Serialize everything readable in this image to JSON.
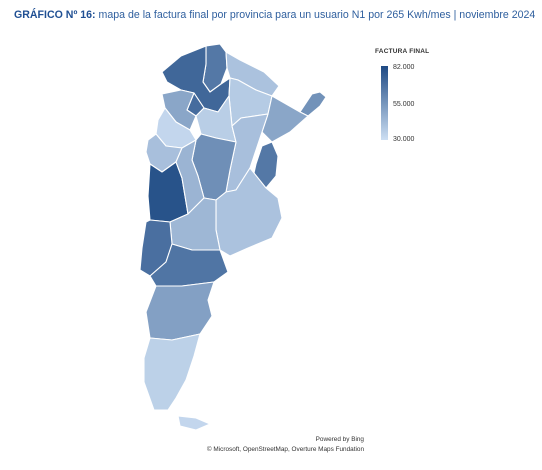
{
  "title": {
    "bold": "GRÁFICO Nº 16:",
    "text": " mapa de la factura final por provincia para un usuario N1 por 265 Kwh/mes | noviembre 2024"
  },
  "legend": {
    "title": "FACTURA FINAL",
    "max_label": "82.000",
    "mid_label": "55.000",
    "min_label": "30.000",
    "min_color": "#cddff3",
    "max_color": "#1e4a84"
  },
  "attribution": {
    "line1": "Powered by Bing",
    "line2": "© Microsoft, OpenStreetMap, Overture Maps Fundation"
  },
  "chart_data": {
    "type": "choropleth",
    "scale": {
      "min": 30000,
      "mid": 55000,
      "max": 82000
    },
    "regions": [
      {
        "id": "jujuy",
        "value": 66000
      },
      {
        "id": "salta",
        "value": 72000
      },
      {
        "id": "formosa",
        "value": 40000
      },
      {
        "id": "misiones",
        "value": 57000
      },
      {
        "id": "chaco",
        "value": 37000
      },
      {
        "id": "tucuman",
        "value": 70000
      },
      {
        "id": "catamarca",
        "value": 50000
      },
      {
        "id": "santiago-del-estero",
        "value": 36000
      },
      {
        "id": "corrientes",
        "value": 50000
      },
      {
        "id": "la-rioja",
        "value": 33000
      },
      {
        "id": "santa-fe",
        "value": 41000
      },
      {
        "id": "entre-rios",
        "value": 66000
      },
      {
        "id": "san-juan",
        "value": 41000
      },
      {
        "id": "cordoba",
        "value": 58000
      },
      {
        "id": "mendoza",
        "value": 79000
      },
      {
        "id": "san-luis",
        "value": 45000
      },
      {
        "id": "buenos-aires",
        "value": 40000
      },
      {
        "id": "la-pampa",
        "value": 44000
      },
      {
        "id": "neuquen",
        "value": 69000
      },
      {
        "id": "rio-negro",
        "value": 67000
      },
      {
        "id": "chubut",
        "value": 52000
      },
      {
        "id": "santa-cruz",
        "value": 35000
      },
      {
        "id": "tierra-del-fuego",
        "value": 33000
      }
    ]
  }
}
